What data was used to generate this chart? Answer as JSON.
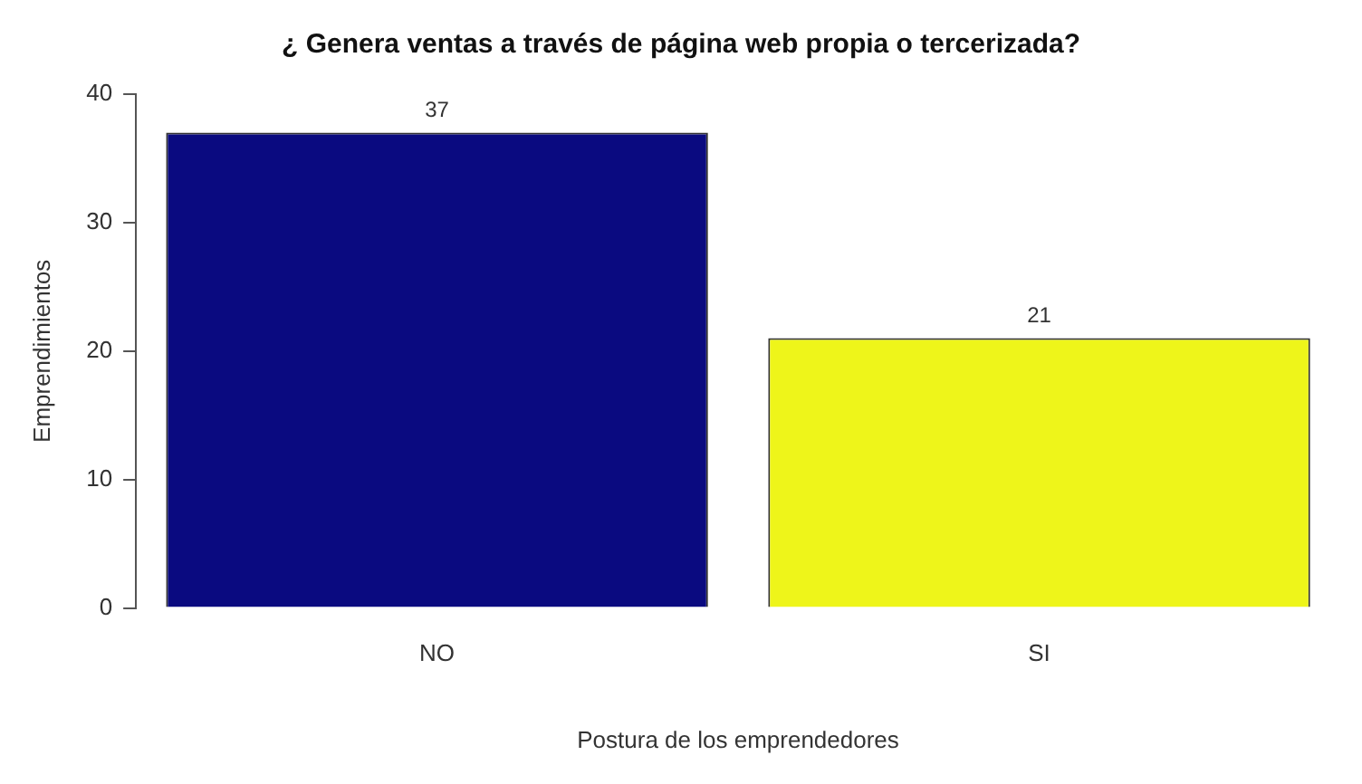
{
  "chart_data": {
    "type": "bar",
    "title": "¿ Genera ventas a través de página web propia o tercerizada?",
    "xlabel": "Postura de los emprendedores",
    "ylabel": "Emprendimientos",
    "categories": [
      "NO",
      "SI"
    ],
    "values": [
      37,
      21
    ],
    "colors": [
      "#0a0a80",
      "#eef51a"
    ],
    "ylim": [
      0,
      40
    ],
    "yticks": [
      0,
      10,
      20,
      30,
      40
    ],
    "grid": false,
    "legend": false,
    "data_labels": true
  }
}
